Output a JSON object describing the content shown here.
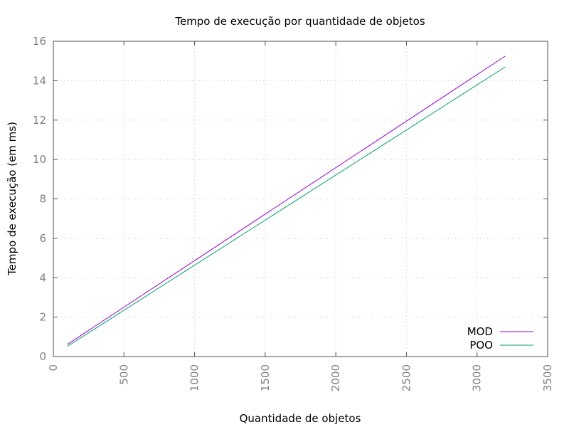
{
  "chart_data": {
    "type": "line",
    "title": "Tempo de execução por quantidade de objetos",
    "xlabel": "Quantidade de objetos",
    "ylabel": "Tempo de execução (em ms)",
    "xlim": [
      0,
      3500
    ],
    "ylim": [
      0,
      16
    ],
    "xticks": [
      "0",
      "500",
      "1000",
      "1500",
      "2000",
      "2500",
      "3000",
      "3500"
    ],
    "yticks": [
      "0",
      "2",
      "4",
      "6",
      "8",
      "10",
      "12",
      "14",
      "16"
    ],
    "grid": true,
    "legend_position": "bottom-right",
    "series": [
      {
        "name": "MOD",
        "color": "#9400d3",
        "x": [
          100,
          3200
        ],
        "y": [
          0.62,
          15.25
        ]
      },
      {
        "name": "POO",
        "color": "#009e73",
        "x": [
          100,
          3200
        ],
        "y": [
          0.52,
          14.7
        ]
      }
    ]
  }
}
